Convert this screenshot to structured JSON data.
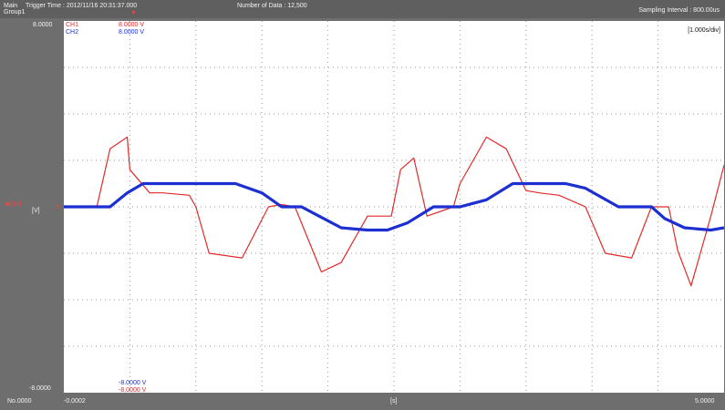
{
  "header": {
    "main_label": "Main",
    "group_label": "Group1",
    "trigger_time": "Trigger Time : 2012/11/16 20:31:37.000",
    "number_of_data": "Number of Data : 12,500",
    "sampling_interval": "Sampling Interval : 800.00us"
  },
  "plot": {
    "y_top_label": "8.0000",
    "y_bottom_label": "-8.0000",
    "x_left_label": "-0.0002",
    "x_right_label": "5.0000",
    "x_unit_label": "[s]",
    "x_index_label": "No.0000",
    "time_div_label": "[1.000s/div]",
    "ch1_top_value": "8.0000 V",
    "ch2_top_value": "8.0000 V",
    "ch2_bottom_value": "-8.0000 V",
    "ch1_bottom_value": "-8.0000 V",
    "ch1_name": "CH1",
    "ch2_name": "CH2",
    "ch1_left_label": "CH1",
    "left_unit_label": "[V]",
    "zero_marker": "0"
  },
  "colors": {
    "ch1": "#e22a2a",
    "ch2": "#1c2fd0",
    "grid_dots": "#9a9a9a",
    "plot_bg": "#ffffff",
    "frame_bg": "#6e6e6e"
  },
  "chart_data": {
    "type": "line",
    "x_range": [
      0,
      5
    ],
    "ylim": [
      -8,
      8
    ],
    "grid": true,
    "series": [
      {
        "name": "CH1",
        "x": [
          0.0,
          0.25,
          0.35,
          0.48,
          0.5,
          0.65,
          0.75,
          0.95,
          1.0,
          1.1,
          1.35,
          1.55,
          1.65,
          1.75,
          1.95,
          2.1,
          2.3,
          2.48,
          2.55,
          2.65,
          2.75,
          2.95,
          3.0,
          3.2,
          3.35,
          3.5,
          3.6,
          3.75,
          3.95,
          4.1,
          4.3,
          4.45,
          4.5,
          4.58,
          4.65,
          4.75,
          4.9,
          5.0
        ],
        "y": [
          0.0,
          0.0,
          2.5,
          3.0,
          1.6,
          0.6,
          0.6,
          0.5,
          0.0,
          -2.0,
          -2.2,
          0.0,
          0.1,
          0.0,
          -2.8,
          -2.4,
          -0.4,
          -0.4,
          1.6,
          2.1,
          -0.4,
          0.0,
          1.0,
          3.0,
          2.5,
          0.7,
          0.6,
          0.5,
          0.0,
          -2.0,
          -2.2,
          0.0,
          0.0,
          0.0,
          -1.9,
          -3.4,
          -0.4,
          1.8
        ]
      },
      {
        "name": "CH2",
        "x": [
          0.0,
          0.35,
          0.48,
          0.6,
          0.8,
          1.0,
          1.1,
          1.3,
          1.5,
          1.65,
          1.8,
          1.9,
          2.0,
          2.1,
          2.3,
          2.45,
          2.6,
          2.8,
          2.9,
          3.0,
          3.2,
          3.4,
          3.5,
          3.65,
          3.8,
          3.95,
          4.2,
          4.45,
          4.55,
          4.7,
          4.9,
          5.0
        ],
        "y": [
          0.0,
          0.0,
          0.6,
          1.0,
          1.0,
          1.0,
          1.0,
          1.0,
          0.6,
          0.0,
          0.0,
          -0.3,
          -0.6,
          -0.9,
          -1.0,
          -1.0,
          -0.7,
          0.0,
          0.0,
          0.0,
          0.3,
          1.0,
          1.0,
          1.0,
          1.0,
          0.8,
          0.0,
          0.0,
          -0.5,
          -0.9,
          -1.0,
          -0.9
        ]
      }
    ]
  }
}
